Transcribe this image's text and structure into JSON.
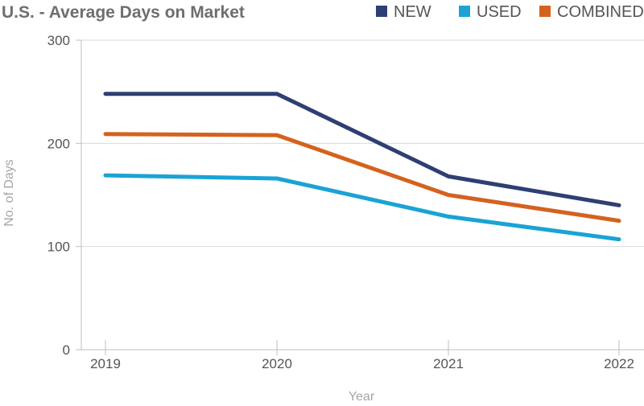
{
  "chart_data": {
    "type": "line",
    "title": "U.S. - Average Days on Market",
    "xlabel": "Year",
    "ylabel": "No. of Days",
    "categories": [
      "2019",
      "2020",
      "2021",
      "2022"
    ],
    "ylim": [
      0,
      300
    ],
    "yticks": [
      0,
      100,
      200,
      300
    ],
    "grid": true,
    "legend_position": "top-right",
    "series": [
      {
        "name": "NEW",
        "color": "#2e3f73",
        "values": [
          248,
          248,
          168,
          140
        ]
      },
      {
        "name": "USED",
        "color": "#1aa3d4",
        "values": [
          169,
          166,
          129,
          107
        ]
      },
      {
        "name": "COMBINED",
        "color": "#d4621e",
        "values": [
          209,
          208,
          150,
          125
        ]
      }
    ]
  }
}
